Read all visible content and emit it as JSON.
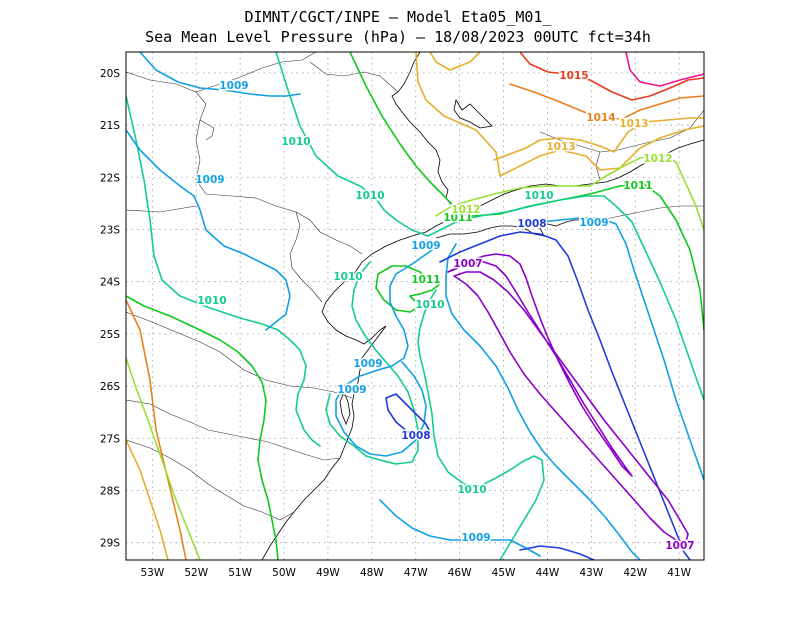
{
  "title": {
    "line1": "DIMNT/CGCT/INPE –  Model Eta05_M01_",
    "line2": "Sea Mean Level Pressure (hPa) – 18/08/2023 00UTC fct=34h"
  },
  "axes": {
    "x_ticks": [
      "53W",
      "52W",
      "51W",
      "50W",
      "49W",
      "48W",
      "47W",
      "46W",
      "45W",
      "44W",
      "43W",
      "42W",
      "41W"
    ],
    "y_ticks": [
      "20S",
      "21S",
      "22S",
      "23S",
      "24S",
      "25S",
      "26S",
      "27S",
      "28S",
      "29S"
    ]
  },
  "colors": {
    "1007": "#8a00c8",
    "1008": "#1e3cdc",
    "1009": "#10a0e6",
    "1010": "#14cd8c",
    "1011": "#10c81e",
    "1012": "#96e132",
    "1013": "#e6af2d",
    "1014": "#e6821e",
    "1015": "#e63c1e",
    "1016": "#f0148c"
  },
  "isobar_labels": [
    {
      "text": "1009",
      "level": "1009"
    },
    {
      "text": "1009",
      "level": "1009"
    },
    {
      "text": "1009",
      "level": "1009"
    },
    {
      "text": "1009",
      "level": "1009"
    },
    {
      "text": "1009",
      "level": "1009"
    },
    {
      "text": "1009",
      "level": "1009"
    },
    {
      "text": "1009",
      "level": "1009"
    },
    {
      "text": "1010",
      "level": "1010"
    },
    {
      "text": "1010",
      "level": "1010"
    },
    {
      "text": "1010",
      "level": "1010"
    },
    {
      "text": "1010",
      "level": "1010"
    },
    {
      "text": "1010",
      "level": "1010"
    },
    {
      "text": "1010",
      "level": "1010"
    },
    {
      "text": "1010",
      "level": "1010"
    },
    {
      "text": "1011",
      "level": "1011"
    },
    {
      "text": "1011",
      "level": "1011"
    },
    {
      "text": "1011",
      "level": "1011"
    },
    {
      "text": "1012",
      "level": "1012"
    },
    {
      "text": "1012",
      "level": "1012"
    },
    {
      "text": "1013",
      "level": "1013"
    },
    {
      "text": "1013",
      "level": "1013"
    },
    {
      "text": "1014",
      "level": "1014"
    },
    {
      "text": "1015",
      "level": "1015"
    },
    {
      "text": "1008",
      "level": "1008"
    },
    {
      "text": "1008",
      "level": "1008"
    },
    {
      "text": "1007",
      "level": "1007"
    },
    {
      "text": "1007",
      "level": "1007"
    }
  ]
}
